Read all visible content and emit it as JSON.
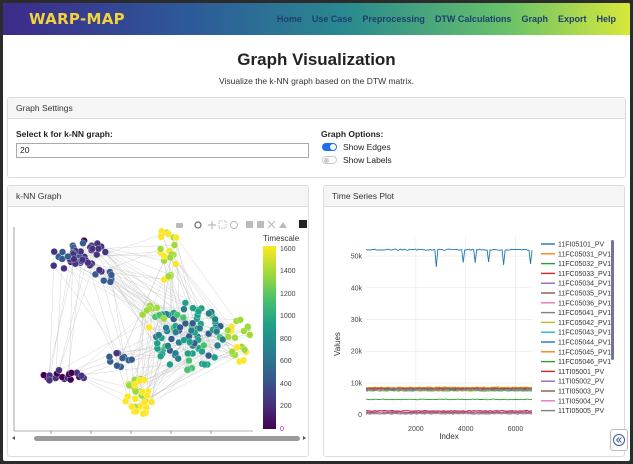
{
  "nav": {
    "brand": "WARP-MAP",
    "items": [
      "Home",
      "Use Case",
      "Preprocessing",
      "DTW Calculations",
      "Graph",
      "Export",
      "Help"
    ]
  },
  "page": {
    "title": "Graph Visualization",
    "subtitle": "Visualize the k-NN graph based on the DTW matrix."
  },
  "settings": {
    "header": "Graph Settings",
    "k_label": "Select k for k-NN graph:",
    "k_value": "20",
    "options_label": "Graph Options:",
    "show_edges": {
      "label": "Show Edges",
      "on": true
    },
    "show_labels": {
      "label": "Show Labels",
      "on": false
    }
  },
  "knn": {
    "header": "k-NN Graph",
    "colorbar_title": "Timescale",
    "colorbar_ticks": [
      "1600",
      "1400",
      "1200",
      "1000",
      "800",
      "600",
      "400",
      "200",
      "0"
    ],
    "colorscale": [
      "#440154",
      "#46327e",
      "#365c8d",
      "#277f8e",
      "#1fa187",
      "#4ac16d",
      "#a0da39",
      "#fde725"
    ]
  },
  "ts": {
    "header": "Time Series Plot",
    "ylabel": "Values",
    "xlabel": "Index",
    "yticks": [
      "50k",
      "40k",
      "30k",
      "20k",
      "10k",
      "0"
    ],
    "xticks": [
      "2000",
      "4000",
      "6000"
    ]
  },
  "chart_data": {
    "type": "line",
    "xlabel": "Index",
    "ylabel": "Values",
    "xlim": [
      0,
      6700
    ],
    "ylim": [
      -2000,
      56000
    ],
    "series": [
      {
        "name": "11FI05101_PV",
        "color": "#1f77b4",
        "level": 52000
      },
      {
        "name": "11FC05031_PV1",
        "color": "#ff7f0e",
        "level": 8600
      },
      {
        "name": "11FC05032_PV1",
        "color": "#2ca02c",
        "level": 8400
      },
      {
        "name": "11FC05033_PV1",
        "color": "#d62728",
        "level": 8300
      },
      {
        "name": "11FC05034_PV1",
        "color": "#9467bd",
        "level": 8200
      },
      {
        "name": "11FC05035_PV1",
        "color": "#8c564b",
        "level": 8100
      },
      {
        "name": "11FC05036_PV1",
        "color": "#e377c2",
        "level": 8000
      },
      {
        "name": "11FC05041_PV1",
        "color": "#7f7f7f",
        "level": 7900
      },
      {
        "name": "11FC05042_PV1",
        "color": "#bcbd22",
        "level": 7800
      },
      {
        "name": "11FC05043_PV1",
        "color": "#17becf",
        "level": 7700
      },
      {
        "name": "11FC05044_PV1",
        "color": "#1f77b4",
        "level": 7600
      },
      {
        "name": "11FC05045_PV1",
        "color": "#ff7f0e",
        "level": 7500
      },
      {
        "name": "11FC05046_PV1",
        "color": "#2ca02c",
        "level": 4800
      },
      {
        "name": "11TI05001_PV",
        "color": "#d62728",
        "level": 1200
      },
      {
        "name": "11TI05002_PV",
        "color": "#9467bd",
        "level": 900
      },
      {
        "name": "11TI05003_PV",
        "color": "#8c564b",
        "level": 700
      },
      {
        "name": "11TI05004_PV",
        "color": "#e377c2",
        "level": 500
      },
      {
        "name": "11TI05005_PV",
        "color": "#7f7f7f",
        "level": 300
      }
    ]
  }
}
